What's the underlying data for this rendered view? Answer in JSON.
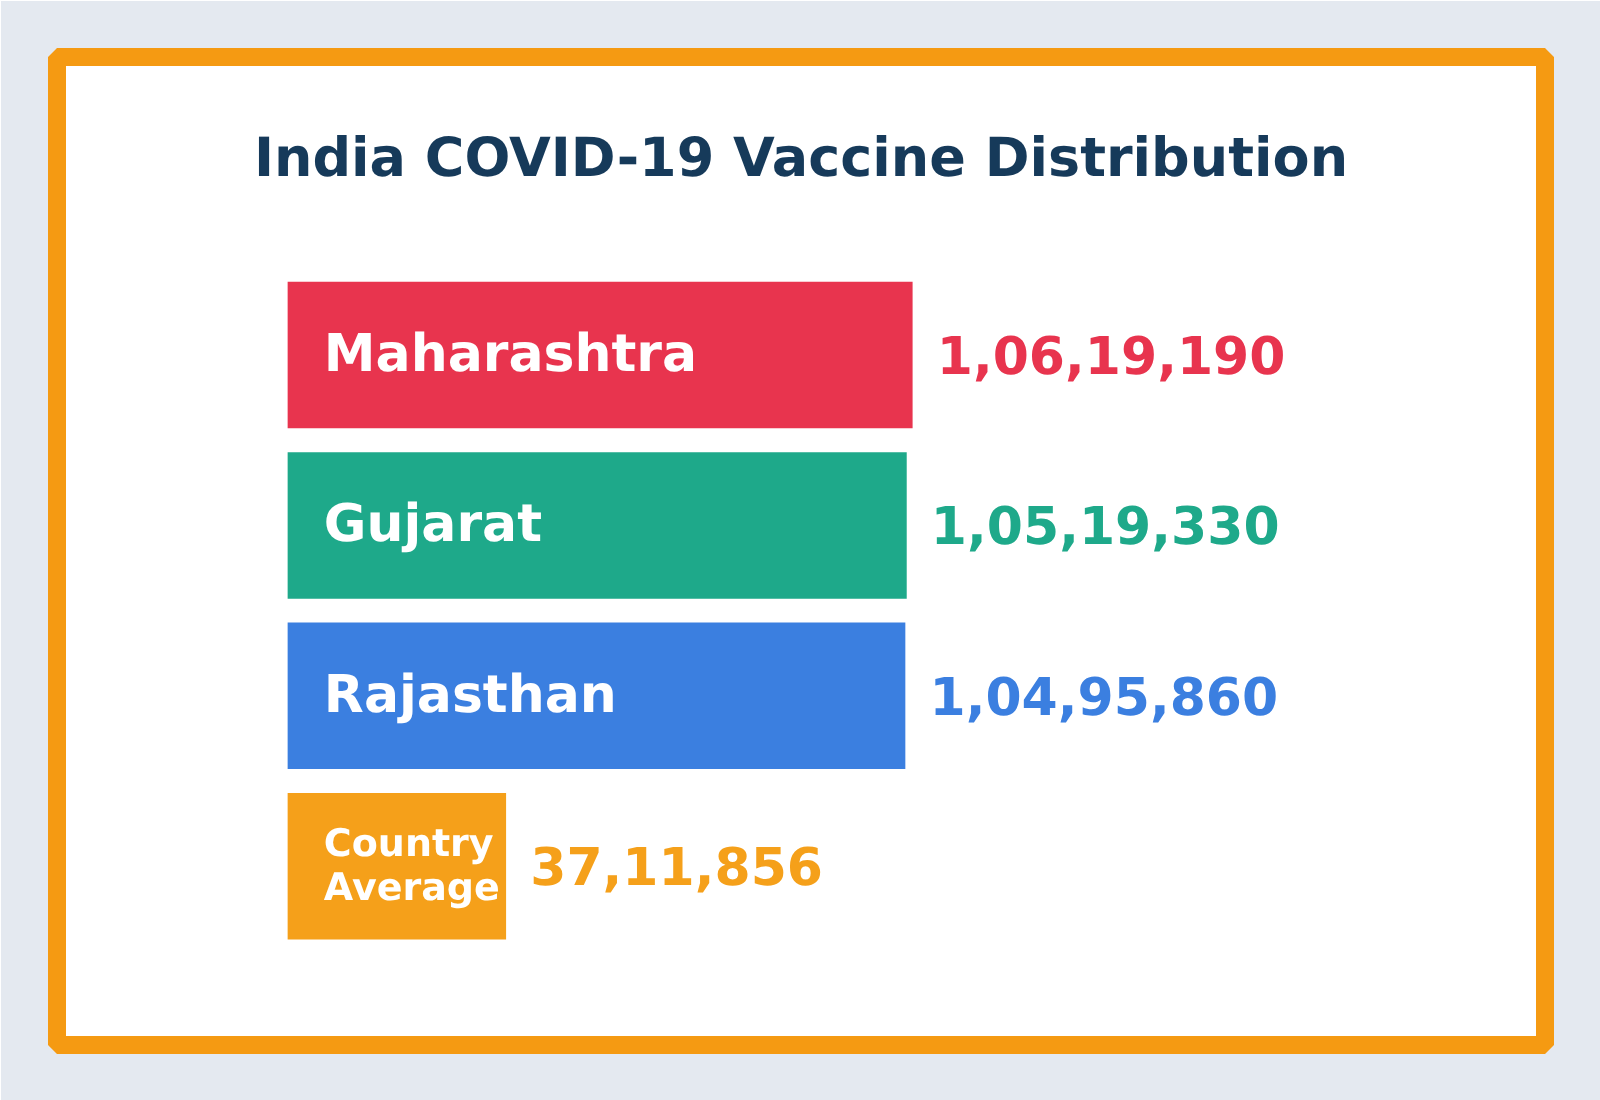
{
  "chart_data": {
    "type": "bar",
    "orientation": "horizontal",
    "title": "India COVID-19 Vaccine Distribution",
    "categories": [
      "Maharashtra",
      "Gujarat",
      "Rajasthan",
      "Country Average"
    ],
    "values": [
      10619190,
      10519330,
      10495860,
      3711856
    ],
    "colors": [
      "#e8344e",
      "#1ea98a",
      "#3b7fe0",
      "#f5a01a"
    ],
    "value_labels": [
      "1,06,19,190",
      "1,05,19,330",
      "1,04,95,860",
      "37,11,856"
    ],
    "grid": false
  }
}
